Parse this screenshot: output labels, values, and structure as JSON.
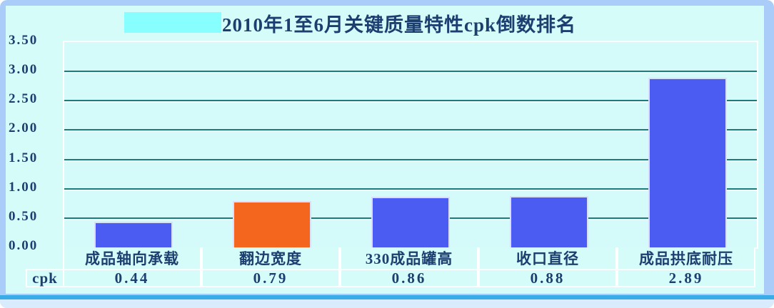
{
  "chart_data": {
    "type": "bar",
    "title": "2010年1至6月关键质量特性cpk倒数排名",
    "categories": [
      "成品轴向承载",
      "翻边宽度",
      "330成品罐高",
      "收口直径",
      "成品拱底耐压"
    ],
    "values": [
      0.44,
      0.79,
      0.86,
      0.88,
      2.89
    ],
    "value_labels": [
      "0.44",
      "0.79",
      "0.86",
      "0.88",
      "2.89"
    ],
    "bar_colors": [
      "#4a5cf2",
      "#f4661e",
      "#4a5cf2",
      "#4a5cf2",
      "#4a5cf2"
    ],
    "row_label": "cpk",
    "xlabel": "",
    "ylabel": "",
    "ylim": [
      0,
      3.5
    ],
    "ytick_labels": [
      "3.50",
      "3.00",
      "2.50",
      "2.00",
      "1.50",
      "1.00",
      "0.50",
      "0.00"
    ],
    "grid": true,
    "legend_position": "none"
  },
  "colors": {
    "frame": "#a9cdf8",
    "canvas_bg": "#d6fcfa",
    "plot_bg": "#d4fbf9",
    "gridline": "#1e7b7b",
    "text": "#1c3f70",
    "title_highlight": "#87feff",
    "bottom_accent": "#3aade9",
    "table_border": "#ffffff"
  }
}
